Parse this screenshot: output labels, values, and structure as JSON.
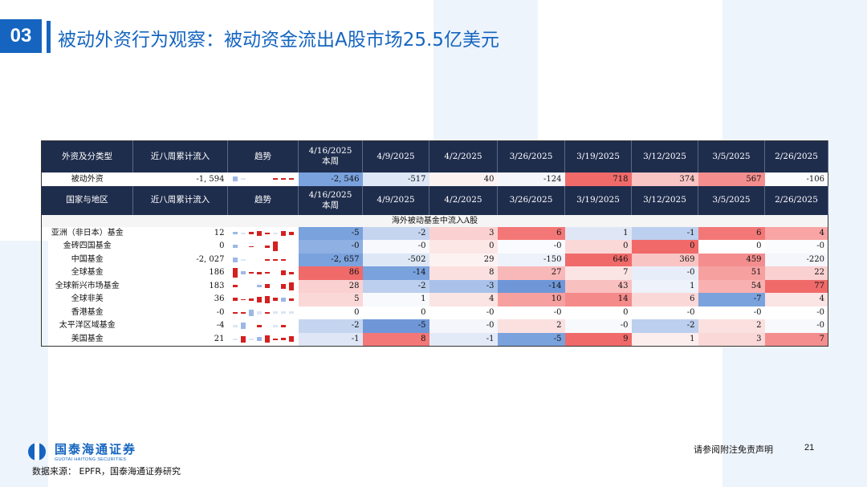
{
  "header": {
    "section_number": "03",
    "title": "被动外资行为观察：被动资金流出A股市场25.5亿美元"
  },
  "table": {
    "header_top": {
      "category": "外资及分类型",
      "cumulative": "近八周累计流入",
      "trend": "趋势",
      "current_week_date": "4/16/2025",
      "current_week_label": "本周",
      "dates": [
        "4/9/2025",
        "4/2/2025",
        "3/26/2025",
        "3/19/2025",
        "3/12/2025",
        "3/5/2025",
        "2/26/2025"
      ]
    },
    "total_row": {
      "name": "被动外资",
      "cumulative": "-1, 594",
      "values": [
        "-2, 546",
        "-517",
        "40",
        "-124",
        "718",
        "374",
        "567",
        "-106"
      ],
      "colors": [
        "#7aa2dd",
        "#dde7f6",
        "#fdf2f2",
        "#f4f6fb",
        "#f06a6a",
        "#f9c4c4",
        "#f48e8e",
        "#fbfcfe"
      ],
      "sparkline": [
        {
          "color": "#9db8e6",
          "h": 6
        },
        {
          "color": "#dce6f5",
          "h": 2
        },
        {
          "color": "#ffffff",
          "h": 0
        },
        {
          "color": "#ffffff",
          "h": 0
        },
        {
          "color": "#ffffff",
          "h": 0
        },
        {
          "color": "#d42020",
          "h": 2
        },
        {
          "color": "#d42020",
          "h": 2
        },
        {
          "color": "#d42020",
          "h": 2
        }
      ]
    },
    "header_bottom": {
      "category": "国家与地区",
      "cumulative": "近八周累计流入",
      "trend": "趋势",
      "current_week_date": "4/16/2025",
      "current_week_label": "本周",
      "dates": [
        "4/9/2025",
        "4/2/2025",
        "3/26/2025",
        "3/19/2025",
        "3/12/2025",
        "3/5/2025",
        "2/26/2025"
      ]
    },
    "subheader": "海外被动基金中流入A股",
    "rows": [
      {
        "name": "亚洲（非日本）基金",
        "cumulative": "12",
        "values": [
          "-5",
          "-2",
          "3",
          "6",
          "1",
          "-1",
          "6",
          "4"
        ],
        "colors": [
          "#7aa2dd",
          "#c5d5f0",
          "#fbd0d0",
          "#f37777",
          "#dfe7f6",
          "#bccfee",
          "#f37777",
          "#f9a5a5"
        ],
        "sparkline": [
          {
            "color": "#9db8e6",
            "h": 3
          },
          {
            "color": "#dce6f5",
            "h": 2
          },
          {
            "color": "#d42020",
            "h": 3
          },
          {
            "color": "#d42020",
            "h": 6
          },
          {
            "color": "#d42020",
            "h": 2
          },
          {
            "color": "#dce6f5",
            "h": 2
          },
          {
            "color": "#d42020",
            "h": 6
          },
          {
            "color": "#d42020",
            "h": 4
          }
        ]
      },
      {
        "name": "金砖四国基金",
        "cumulative": "0",
        "values": [
          "-0",
          "-0",
          "0",
          "-0",
          "0",
          "0",
          "0",
          "-0"
        ],
        "colors": [
          "#8eb0e2",
          "#f7f9fd",
          "#fde6e6",
          "#fafbfe",
          "#fbd8d8",
          "#f06a6a",
          "#ffffff",
          "#fbfcfe"
        ],
        "sparkline": [
          {
            "color": "#9db8e6",
            "h": 4
          },
          {
            "color": "#ffffff",
            "h": 0
          },
          {
            "color": "#d42020",
            "h": 1
          },
          {
            "color": "#ffffff",
            "h": 0
          },
          {
            "color": "#d42020",
            "h": 3
          },
          {
            "color": "#d42020",
            "h": 12
          },
          {
            "color": "#ffffff",
            "h": 0
          },
          {
            "color": "#ffffff",
            "h": 0
          }
        ]
      },
      {
        "name": "中国基金",
        "cumulative": "-2, 027",
        "values": [
          "-2, 657",
          "-502",
          "29",
          "-150",
          "646",
          "369",
          "459",
          "-220"
        ],
        "colors": [
          "#7aa2dd",
          "#dde7f6",
          "#fdf2f2",
          "#eef2fa",
          "#f06a6a",
          "#f9c4c4",
          "#f48e8e",
          "#f4f6fb"
        ],
        "sparkline": [
          {
            "color": "#9db8e6",
            "h": 6
          },
          {
            "color": "#dce6f5",
            "h": 2
          },
          {
            "color": "#ffffff",
            "h": 0
          },
          {
            "color": "#ffffff",
            "h": 0
          },
          {
            "color": "#d42020",
            "h": 2
          },
          {
            "color": "#d42020",
            "h": 2
          },
          {
            "color": "#d42020",
            "h": 2
          },
          {
            "color": "#ffffff",
            "h": 0
          }
        ]
      },
      {
        "name": "全球基金",
        "cumulative": "186",
        "values": [
          "86",
          "-14",
          "8",
          "27",
          "7",
          "-0",
          "51",
          "22"
        ],
        "colors": [
          "#f06a6a",
          "#7aa2dd",
          "#fbe0e0",
          "#f9b8b8",
          "#fbe4e4",
          "#e8eef9",
          "#f6a0a0",
          "#fad0d0"
        ],
        "sparkline": [
          {
            "color": "#d42020",
            "h": 12
          },
          {
            "color": "#9db8e6",
            "h": 4
          },
          {
            "color": "#d42020",
            "h": 2
          },
          {
            "color": "#d42020",
            "h": 3
          },
          {
            "color": "#d42020",
            "h": 2
          },
          {
            "color": "#ffffff",
            "h": 0
          },
          {
            "color": "#d42020",
            "h": 6
          },
          {
            "color": "#d42020",
            "h": 3
          }
        ]
      },
      {
        "name": "全球新兴市场基金",
        "cumulative": "183",
        "values": [
          "28",
          "-2",
          "-3",
          "-14",
          "43",
          "1",
          "54",
          "77"
        ],
        "colors": [
          "#fbd0d0",
          "#bccfee",
          "#aac2ea",
          "#6f97d8",
          "#f9c0c0",
          "#eef2fa",
          "#f8b0b0",
          "#f06a6a"
        ],
        "sparkline": [
          {
            "color": "#d42020",
            "h": 3
          },
          {
            "color": "#ffffff",
            "h": 0
          },
          {
            "color": "#ffffff",
            "h": 0
          },
          {
            "color": "#9db8e6",
            "h": 3
          },
          {
            "color": "#d42020",
            "h": 5
          },
          {
            "color": "#ffffff",
            "h": 0
          },
          {
            "color": "#d42020",
            "h": 6
          },
          {
            "color": "#d42020",
            "h": 10
          }
        ]
      },
      {
        "name": "全球非美",
        "cumulative": "36",
        "values": [
          "5",
          "1",
          "4",
          "10",
          "14",
          "6",
          "-7",
          "4"
        ],
        "colors": [
          "#fbd8d8",
          "#f7f9fd",
          "#fbe4e4",
          "#f6a0a0",
          "#f48a8a",
          "#fbd8d8",
          "#7aa2dd",
          "#fbe4e4"
        ],
        "sparkline": [
          {
            "color": "#d42020",
            "h": 4
          },
          {
            "color": "#d42020",
            "h": 1
          },
          {
            "color": "#d42020",
            "h": 3
          },
          {
            "color": "#d42020",
            "h": 7
          },
          {
            "color": "#d42020",
            "h": 9
          },
          {
            "color": "#d42020",
            "h": 4
          },
          {
            "color": "#9db8e6",
            "h": 5
          },
          {
            "color": "#d42020",
            "h": 3
          }
        ]
      },
      {
        "name": "香港基金",
        "cumulative": "-0",
        "values": [
          "0",
          "0",
          "-0",
          "-0",
          "0",
          "-0",
          "-0",
          "-0"
        ],
        "colors": [
          "#ffffff",
          "#ffffff",
          "#ffffff",
          "#ffffff",
          "#ffffff",
          "#ffffff",
          "#ffffff",
          "#ffffff"
        ],
        "sparkline": [
          {
            "color": "#d42020",
            "h": 2
          },
          {
            "color": "#d42020",
            "h": 2
          },
          {
            "color": "#9db8e6",
            "h": 8
          },
          {
            "color": "#dce6f5",
            "h": 4
          },
          {
            "color": "#d42020",
            "h": 2
          },
          {
            "color": "#dce6f5",
            "h": 3
          },
          {
            "color": "#dce6f5",
            "h": 3
          },
          {
            "color": "#dce6f5",
            "h": 3
          }
        ]
      },
      {
        "name": "太平洋区域基金",
        "cumulative": "-4",
        "values": [
          "-2",
          "-5",
          "-0",
          "2",
          "-0",
          "-2",
          "2",
          "-0"
        ],
        "colors": [
          "#c5d5f0",
          "#6f97d8",
          "#f4f6fb",
          "#fbe0e0",
          "#f7f9fd",
          "#bccfee",
          "#fbe0e0",
          "#f7f9fd"
        ],
        "sparkline": [
          {
            "color": "#dce6f5",
            "h": 3
          },
          {
            "color": "#9db8e6",
            "h": 8
          },
          {
            "color": "#ffffff",
            "h": 0
          },
          {
            "color": "#d42020",
            "h": 3
          },
          {
            "color": "#ffffff",
            "h": 0
          },
          {
            "color": "#dce6f5",
            "h": 3
          },
          {
            "color": "#d42020",
            "h": 3
          },
          {
            "color": "#ffffff",
            "h": 0
          }
        ]
      },
      {
        "name": "美国基金",
        "cumulative": "21",
        "values": [
          "-1",
          "8",
          "-1",
          "-5",
          "9",
          "1",
          "3",
          "7"
        ],
        "colors": [
          "#dfe7f6",
          "#f37777",
          "#e3eaf7",
          "#7aa2dd",
          "#f06a6a",
          "#fdeeee",
          "#fbd8d8",
          "#f48e8e"
        ],
        "sparkline": [
          {
            "color": "#dce6f5",
            "h": 2
          },
          {
            "color": "#d42020",
            "h": 8
          },
          {
            "color": "#dce6f5",
            "h": 2
          },
          {
            "color": "#9db8e6",
            "h": 5
          },
          {
            "color": "#d42020",
            "h": 9
          },
          {
            "color": "#d42020",
            "h": 2
          },
          {
            "color": "#d42020",
            "h": 3
          },
          {
            "color": "#d42020",
            "h": 7
          }
        ]
      }
    ]
  },
  "footer": {
    "logo_cn": "国泰海通证券",
    "logo_en": "GUOTAI HAITONG SECURITIES",
    "source": "数据来源： EPFR，国泰海通证券研究",
    "disclaimer": "请参阅附注免责声明",
    "page_number": "21"
  }
}
